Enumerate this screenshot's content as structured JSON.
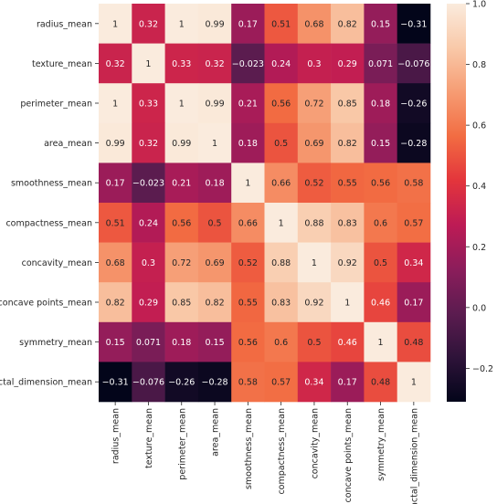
{
  "chart_data": {
    "type": "heatmap",
    "title": "",
    "xlabel": "",
    "ylabel": "",
    "labels": [
      "radius_mean",
      "texture_mean",
      "perimeter_mean",
      "area_mean",
      "smoothness_mean",
      "compactness_mean",
      "concavity_mean",
      "concave points_mean",
      "symmetry_mean",
      "fractal_dimension_mean"
    ],
    "values": [
      [
        1,
        0.32,
        1,
        0.99,
        0.17,
        0.51,
        0.68,
        0.82,
        0.15,
        -0.31
      ],
      [
        0.32,
        1,
        0.33,
        0.32,
        -0.023,
        0.24,
        0.3,
        0.29,
        0.071,
        -0.076
      ],
      [
        1,
        0.33,
        1,
        0.99,
        0.21,
        0.56,
        0.72,
        0.85,
        0.18,
        -0.26
      ],
      [
        0.99,
        0.32,
        0.99,
        1,
        0.18,
        0.5,
        0.69,
        0.82,
        0.15,
        -0.28
      ],
      [
        0.17,
        -0.023,
        0.21,
        0.18,
        1,
        0.66,
        0.52,
        0.55,
        0.56,
        0.58
      ],
      [
        0.51,
        0.24,
        0.56,
        0.5,
        0.66,
        1,
        0.88,
        0.83,
        0.6,
        0.57
      ],
      [
        0.68,
        0.3,
        0.72,
        0.69,
        0.52,
        0.88,
        1,
        0.92,
        0.5,
        0.34
      ],
      [
        0.82,
        0.29,
        0.85,
        0.82,
        0.55,
        0.83,
        0.92,
        1,
        0.46,
        0.17
      ],
      [
        0.15,
        0.071,
        0.18,
        0.15,
        0.56,
        0.6,
        0.5,
        0.46,
        1,
        0.48
      ],
      [
        -0.31,
        -0.076,
        -0.26,
        -0.28,
        0.58,
        0.57,
        0.34,
        0.17,
        0.48,
        1
      ]
    ],
    "colorbar": {
      "vmin": -0.31,
      "vmax": 1,
      "ticks": [
        -0.2,
        0.0,
        0.2,
        0.4,
        0.6,
        0.8,
        1.0
      ],
      "tick_labels": [
        "−0.2",
        "0.0",
        "0.2",
        "0.4",
        "0.6",
        "0.8",
        "1.0"
      ],
      "colormap": "rocket",
      "colormap_stops": [
        "#03051a",
        "#2e1339",
        "#5c1c50",
        "#8c1d5b",
        "#bd1b55",
        "#e3353c",
        "#f26c42",
        "#f69c73",
        "#f9c9a9",
        "#faebdd"
      ]
    }
  }
}
